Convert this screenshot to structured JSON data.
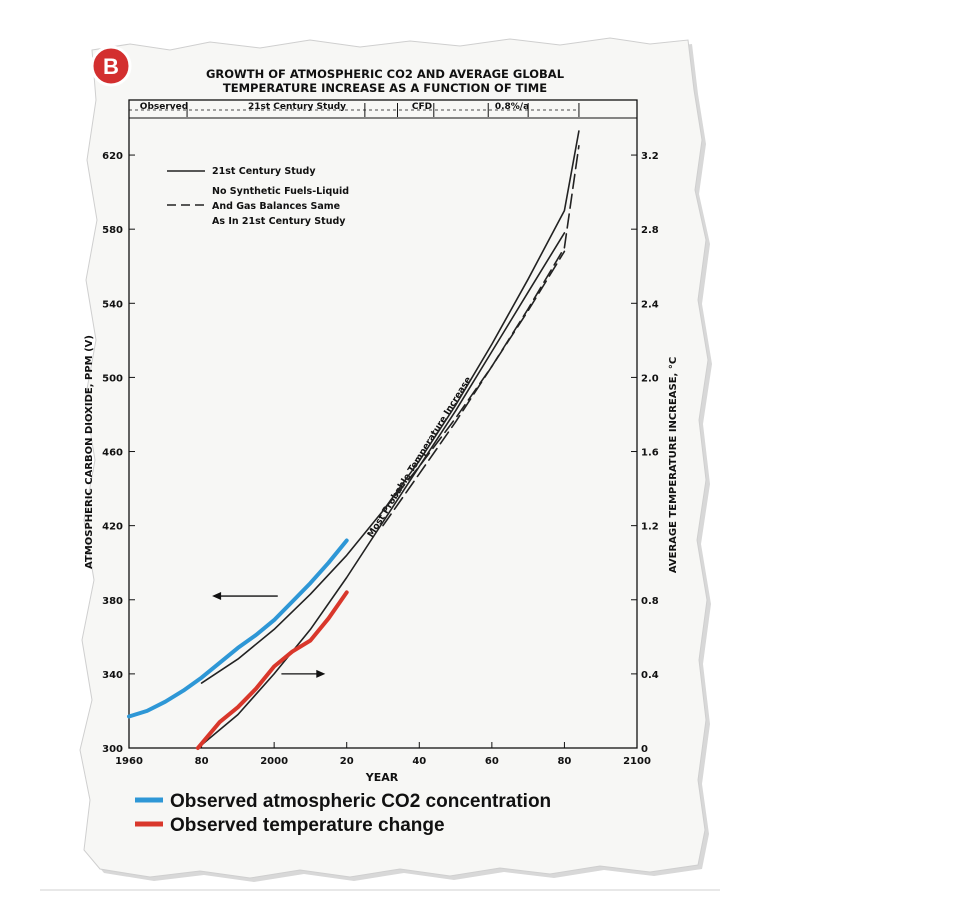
{
  "badge": "B",
  "title_lines": [
    "GROWTH OF ATMOSPHERIC CO2 AND AVERAGE GLOBAL",
    "TEMPERATURE INCREASE AS A FUNCTION OF TIME"
  ],
  "periods": [
    "Observed",
    "21st Century Study",
    "CFD",
    "0.8%/a"
  ],
  "inner_legend": {
    "solid": "21st Century Study",
    "dashed": [
      "No Synthetic Fuels-Liquid",
      "And Gas Balances Same",
      "As In 21st Century Study"
    ]
  },
  "curve_annotation": "Most Probable Temperature Increase",
  "bottom_legend": {
    "co2": "Observed atmospheric CO2 concentration",
    "temp": "Observed temperature change"
  },
  "colors": {
    "co2": "#2e97d6",
    "temp": "#d9372b",
    "projection": "#222222",
    "badge": "#d32f2f"
  },
  "chart_data": {
    "type": "line",
    "title": "GROWTH OF ATMOSPHERIC CO2 AND AVERAGE GLOBAL TEMPERATURE INCREASE AS A FUNCTION OF TIME",
    "xlabel": "YEAR",
    "ylabel_left": "ATMOSPHERIC CARBON DIOXIDE, PPM (V)",
    "ylabel_right": "AVERAGE TEMPERATURE INCREASE, °C",
    "xlim": [
      1960,
      2100
    ],
    "ylim_left": [
      300,
      640
    ],
    "ylim_right": [
      0,
      3.4
    ],
    "x_ticks": [
      1960,
      1980,
      2000,
      2020,
      2040,
      2060,
      2080,
      2100
    ],
    "x_tick_labels": [
      "1960",
      "80",
      "2000",
      "20",
      "40",
      "60",
      "80",
      "2100"
    ],
    "y_left_ticks": [
      300,
      340,
      380,
      420,
      460,
      500,
      540,
      580,
      620
    ],
    "y_right_ticks": [
      0,
      0.4,
      0.8,
      1.2,
      1.6,
      2.0,
      2.4,
      2.8,
      3.2
    ],
    "y_right_tick_labels": [
      "0",
      "0.4",
      "0.8",
      "1.2",
      "1.6",
      "2.0",
      "2.4",
      "2.8",
      "3.2"
    ],
    "grid": false,
    "series": [
      {
        "name": "21st Century Study",
        "style": "solid",
        "axis": "left",
        "x": [
          1980,
          1990,
          2000,
          2010,
          2020,
          2030,
          2040,
          2050,
          2060,
          2070,
          2080,
          2084
        ],
        "y": [
          335,
          348,
          364,
          383,
          404,
          428,
          455,
          485,
          518,
          553,
          590,
          633
        ]
      },
      {
        "name": "No Synthetic Fuels-Liquid And Gas Balances Same As In 21st Century Study",
        "style": "dashed",
        "axis": "left",
        "x": [
          2030,
          2040,
          2050,
          2060,
          2070,
          2080,
          2084
        ],
        "y": [
          428,
          452,
          478,
          506,
          537,
          570,
          625
        ]
      },
      {
        "name": "Most Probable Temperature Increase",
        "style": "solid",
        "axis": "right",
        "x": [
          1979,
          1990,
          2000,
          2010,
          2020,
          2030,
          2040,
          2050,
          2060,
          2070,
          2080
        ],
        "y": [
          0.0,
          0.18,
          0.4,
          0.64,
          0.92,
          1.22,
          1.52,
          1.82,
          2.14,
          2.46,
          2.78
        ]
      },
      {
        "name": "Most Probable Temperature Increase (no synthetic fuels)",
        "style": "dashed",
        "axis": "right",
        "x": [
          2030,
          2040,
          2050,
          2060,
          2070,
          2080
        ],
        "y": [
          1.2,
          1.48,
          1.76,
          2.06,
          2.36,
          2.68
        ]
      },
      {
        "name": "Observed atmospheric CO2 concentration",
        "style": "solid",
        "axis": "left",
        "color": "#2e97d6",
        "x": [
          1960,
          1965,
          1970,
          1975,
          1980,
          1985,
          1990,
          1995,
          2000,
          2005,
          2010,
          2015,
          2020
        ],
        "y": [
          317,
          320,
          325,
          331,
          338,
          346,
          354,
          361,
          369,
          379,
          389,
          400,
          412
        ]
      },
      {
        "name": "Observed temperature change",
        "style": "solid",
        "axis": "right",
        "color": "#d9372b",
        "x": [
          1979,
          1985,
          1990,
          1995,
          2000,
          2005,
          2010,
          2015,
          2020
        ],
        "y": [
          0.0,
          0.14,
          0.22,
          0.32,
          0.44,
          0.52,
          0.58,
          0.7,
          0.84
        ]
      }
    ]
  }
}
